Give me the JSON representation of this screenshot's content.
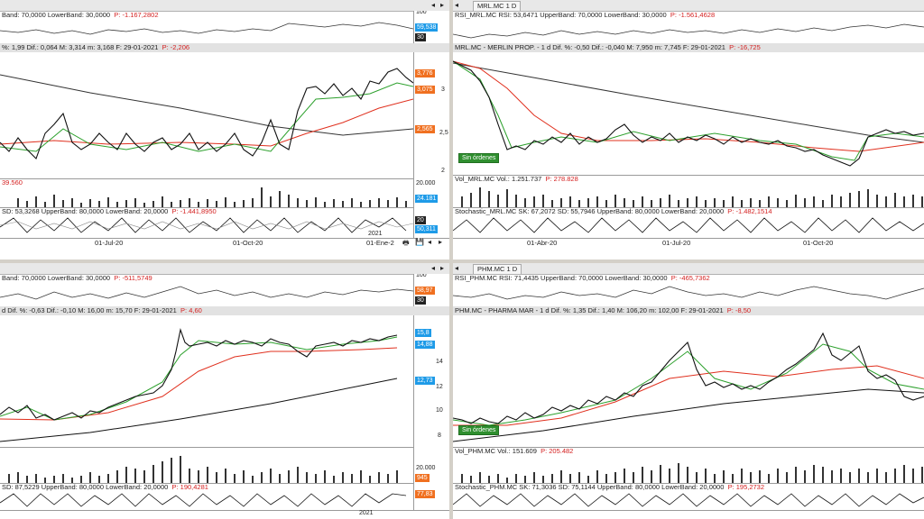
{
  "tl": {
    "rsi_header": "Band: 70,0000  LowerBand: 30,0000",
    "rsi_p": "P: -1.167,2802",
    "rsi_ticks": [
      "100"
    ],
    "rsi_badge": "59,538",
    "rsi_badge2": "30",
    "price_header": "%: 1,99  Dif.: 0,064  M: 3,314  m: 3,168  F: 29-01-2021",
    "price_p": "P: -2,206",
    "price_ticks": [
      "3",
      "2,5",
      "2"
    ],
    "badges": [
      "3,776",
      "3,075",
      "2,565"
    ],
    "vol_p": "39.560",
    "vol_ticks": [
      "20.000"
    ],
    "vol_badge": "24.181",
    "stoch_header": "SD: 53,3268  UpperBand: 80,0000  LowerBand: 20,0000",
    "stoch_p": "P: -1.441,8950",
    "stoch_badge": "20",
    "stoch_badge2": "50,311",
    "year_label": "2021",
    "x_labels": [
      "01-Jul-20",
      "01-Oct-20",
      "01-Ene-2"
    ]
  },
  "tr": {
    "tab": "MRL.MC 1 D",
    "rsi_header": "RSI_MRL.MC  RSI: 53,6471  UpperBand: 70,0000  LowerBand: 30,0000",
    "rsi_p": "P: -1.561,4628",
    "price_header": "MRL.MC - MERLIN PROP.  -  1 d  Dif. %: -0,50  Dif.: -0,040  M: 7,950  m: 7,745  F: 29-01-2021",
    "price_p": "P: -16,725",
    "orders": "Sin órdenes",
    "vol_header": "Vol_MRL.MC  Vol.: 1.251.737",
    "vol_p": "P: 278.828",
    "stoch_header": "Stochastic_MRL.MC  SK: 67,2072  SD: 55,7946  UpperBand: 80,0000  LowerBand: 20,0000",
    "stoch_p": "P: -1.482,1514",
    "x_labels": [
      "01-Abr-20",
      "01-Jul-20",
      "01-Oct-20"
    ]
  },
  "bl": {
    "rsi_header": "Band: 70,0000  LowerBand: 30,0000",
    "rsi_p": "P: -511,5749",
    "rsi_ticks": [
      "100"
    ],
    "rsi_badge": "58,97",
    "rsi_badge2": "30",
    "price_header": "d  Dif. %: -0,63  Dif.: -0,10  M: 16,00  m: 15,70  F: 29-01-2021",
    "price_p": "P: 4,60",
    "price_ticks": [
      "14",
      "12",
      "10",
      "8"
    ],
    "badges": [
      "15,8",
      "14,88",
      "12,73"
    ],
    "vol_ticks": [
      "20.000"
    ],
    "vol_badge": "945",
    "stoch_header": "SD: 87,5229  UpperBand: 80,0000  LowerBand: 20,0000",
    "stoch_p": "P: 190,4281",
    "stoch_badge": "77,83",
    "year_label": "2021"
  },
  "br": {
    "tab": "PHM.MC 1 D",
    "rsi_header": "RSI_PHM.MC  RSI: 71,4435  UpperBand: 70,0000  LowerBand: 30,0000",
    "rsi_p": "P: -465,7362",
    "price_header": "PHM.MC - PHARMA MAR  -  1 d  Dif. %: 1,35  Dif.: 1,40  M: 106,20  m: 102,00  F: 29-01-2021",
    "price_p": "P: -8,50",
    "orders": "Sin órdenes",
    "vol_header": "Vol_PHM.MC  Vol.: 151.609",
    "vol_p": "P: 205.482",
    "stoch_header": "Stochastic_PHM.MC  SK: 71,3036  SD: 75,1144  UpperBand: 80,0000  LowerBand: 20,0000",
    "stoch_p": "P: 195,2732"
  },
  "colors": {
    "green_ma": "#2ca02c",
    "red_ma": "#e0301e",
    "dark_ma": "#333333",
    "badge_blue": "#1e9be8",
    "badge_orange": "#f07020"
  }
}
